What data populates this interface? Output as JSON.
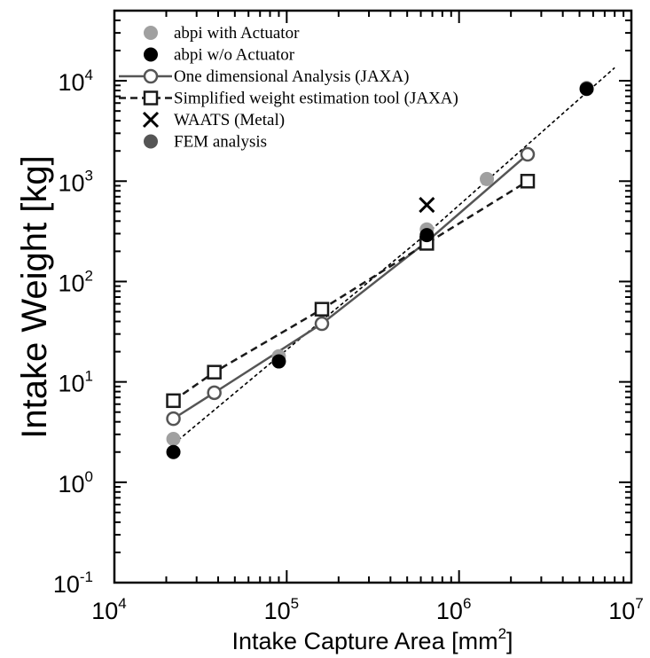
{
  "chart_data": {
    "type": "scatter",
    "xscale": "log",
    "yscale": "log",
    "xlim": [
      10000,
      10000000
    ],
    "ylim": [
      0.1,
      50000
    ],
    "xlabel_main": "Intake Capture Area [mm",
    "xlabel_sup": "2",
    "xlabel_end": "]",
    "ylabel": "Intake Weight [kg]",
    "x_ticks": [
      {
        "value": 10000,
        "base": "10",
        "exp": "4"
      },
      {
        "value": 100000,
        "base": "10",
        "exp": "5"
      },
      {
        "value": 1000000,
        "base": "10",
        "exp": "6"
      },
      {
        "value": 10000000,
        "base": "10",
        "exp": "7"
      }
    ],
    "y_ticks": [
      {
        "value": 0.1,
        "base": "10",
        "exp": "-1"
      },
      {
        "value": 1,
        "base": "10",
        "exp": "0"
      },
      {
        "value": 10,
        "base": "10",
        "exp": "1"
      },
      {
        "value": 100,
        "base": "10",
        "exp": "2"
      },
      {
        "value": 1000,
        "base": "10",
        "exp": "3"
      },
      {
        "value": 10000,
        "base": "10",
        "exp": "4"
      }
    ],
    "grid": false,
    "legend_position": "top-left",
    "series": [
      {
        "name": "abpi with Actuator",
        "kind": "marker",
        "marker": "filled-circle",
        "color": "#a0a0a0",
        "points": [
          [
            22000,
            2.7
          ],
          [
            90000,
            18
          ],
          [
            650000,
            330
          ],
          [
            1450000,
            1050
          ],
          [
            5500000,
            8500
          ]
        ]
      },
      {
        "name": "abpi w/o Actuator",
        "kind": "marker",
        "marker": "filled-circle",
        "color": "#000000",
        "points": [
          [
            22000,
            2.0
          ],
          [
            90000,
            16
          ],
          [
            650000,
            290
          ],
          [
            5500000,
            8300
          ]
        ]
      },
      {
        "name": "One dimensional Analysis (JAXA)",
        "kind": "line-marker",
        "marker": "open-circle",
        "color": "#555555",
        "dashed": false,
        "points": [
          [
            22000,
            4.3
          ],
          [
            38000,
            7.8
          ],
          [
            160000,
            38
          ],
          [
            650000,
            250
          ],
          [
            2500000,
            1850
          ]
        ]
      },
      {
        "name": "Simplified weight estimation tool (JAXA)",
        "kind": "line-marker",
        "marker": "open-square",
        "color": "#1a1a1a",
        "dashed": true,
        "points": [
          [
            22000,
            6.5
          ],
          [
            38000,
            12.5
          ],
          [
            160000,
            53
          ],
          [
            650000,
            240
          ],
          [
            2500000,
            1000
          ]
        ]
      },
      {
        "name": "WAATS (Metal)",
        "kind": "marker",
        "marker": "cross",
        "color": "#000000",
        "points": [
          [
            650000,
            580
          ]
        ]
      },
      {
        "name": "FEM analysis",
        "kind": "marker",
        "marker": "filled-circle",
        "color": "#555555",
        "points": []
      },
      {
        "name": "",
        "kind": "fit-line",
        "color": "#000000",
        "dashed": true,
        "points": [
          [
            22000,
            2.4
          ],
          [
            90000,
            18
          ],
          [
            650000,
            300
          ],
          [
            8000000,
            13500
          ]
        ]
      }
    ]
  }
}
